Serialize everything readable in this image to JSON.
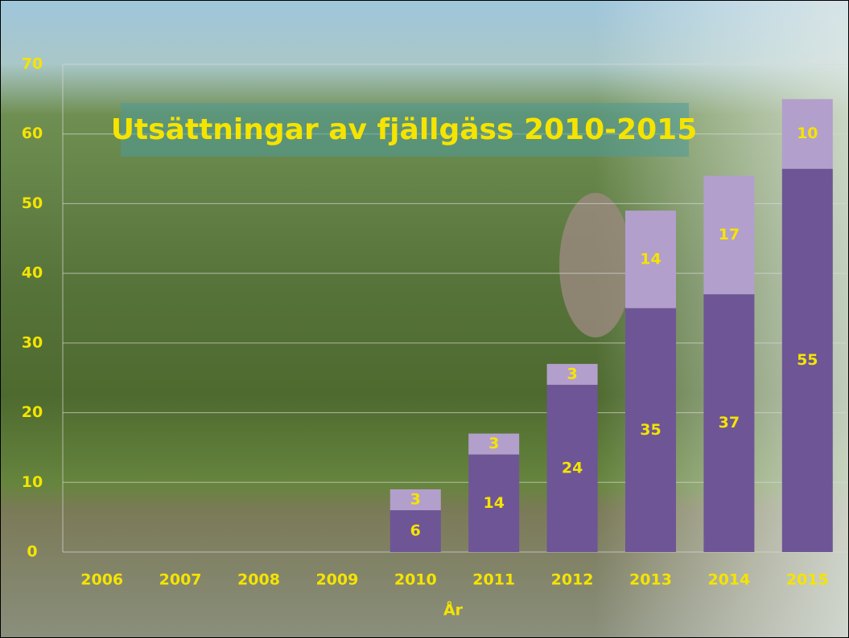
{
  "chart_data": {
    "type": "stacked_bar",
    "title": "Utsättningar av fjällgäss 2010-2015",
    "x_label": "År",
    "categories": [
      "2006",
      "2007",
      "2008",
      "2009",
      "2010",
      "2011",
      "2012",
      "2013",
      "2014",
      "2015"
    ],
    "series": [
      {
        "color": "#6e5596",
        "values": [
          null,
          null,
          null,
          null,
          6,
          14,
          24,
          35,
          37,
          55
        ]
      },
      {
        "color": "#b39fcb",
        "values": [
          null,
          null,
          null,
          null,
          3,
          3,
          3,
          14,
          17,
          10
        ]
      }
    ],
    "ylim": [
      0,
      70
    ],
    "yticks": [
      0,
      10,
      20,
      30,
      40,
      50,
      60,
      70
    ],
    "grid": true
  }
}
